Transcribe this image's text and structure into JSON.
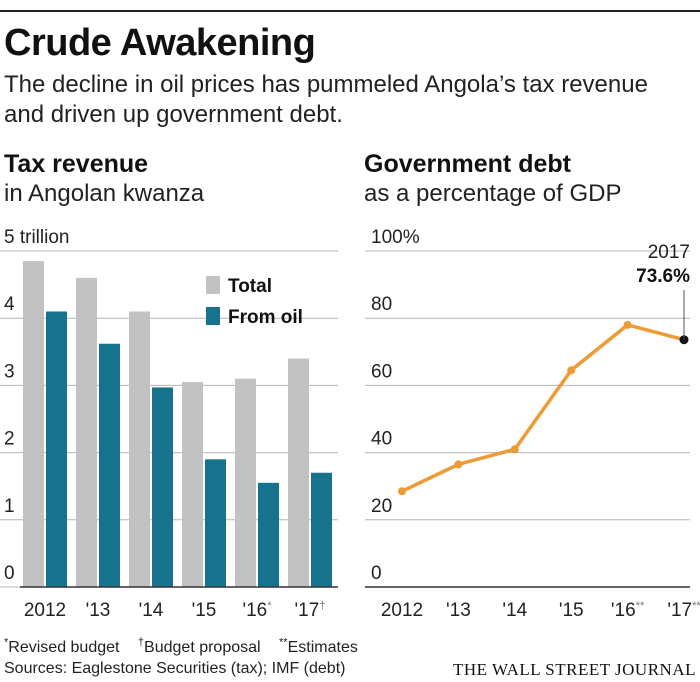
{
  "title": "Crude Awakening",
  "subtitle": "The decline in oil prices has pummeled Angola’s tax revenue and driven up government debt.",
  "colors": {
    "total": "#c2c2c2",
    "oil": "#17728d",
    "line": "#ee9a35",
    "grid": "#b5b5b5",
    "text": "#222222"
  },
  "left_panel": {
    "title": "Tax revenue",
    "subtitle": "in Angolan kwanza"
  },
  "right_panel": {
    "title": "Government debt",
    "subtitle": "as a percentage of GDP"
  },
  "footnotes": {
    "revised_mark": "*",
    "revised": "Revised budget",
    "proposal_mark": "†",
    "proposal": "Budget proposal",
    "estimates_mark": "**",
    "estimates": "Estimates"
  },
  "sources": "Sources: Eaglestone Securities (tax); IMF (debt)",
  "publisher": "THE WALL STREET JOURNAL",
  "chart_data": [
    {
      "type": "bar",
      "title": "Tax revenue",
      "subtitle": "in Angolan kwanza",
      "categories": [
        "2012",
        "'13",
        "'14",
        "'15",
        "'16",
        "'17"
      ],
      "category_marks": [
        "",
        "",
        "",
        "",
        "*",
        "†"
      ],
      "series": [
        {
          "name": "Total",
          "values": [
            4.85,
            4.6,
            4.1,
            3.05,
            3.1,
            3.4
          ]
        },
        {
          "name": "From oil",
          "values": [
            4.1,
            3.62,
            2.97,
            1.9,
            1.55,
            1.7
          ]
        }
      ],
      "ylim": [
        0,
        5
      ],
      "yticks": [
        0,
        1,
        2,
        3,
        4,
        5
      ],
      "ytick_labels": [
        "0",
        "1",
        "2",
        "3",
        "4",
        "5 trillion"
      ],
      "grid": true,
      "legend": "top-right"
    },
    {
      "type": "line",
      "title": "Government debt",
      "subtitle": "as a percentage of GDP",
      "categories": [
        "2012",
        "'13",
        "'14",
        "'15",
        "'16",
        "'17"
      ],
      "category_marks": [
        "",
        "",
        "",
        "",
        "**",
        "**"
      ],
      "series": [
        {
          "name": "Government debt",
          "values": [
            28.5,
            36.5,
            41,
            64.5,
            78,
            73.6
          ]
        }
      ],
      "ylim": [
        0,
        100
      ],
      "yticks": [
        0,
        20,
        40,
        60,
        80,
        100
      ],
      "ytick_labels": [
        "0",
        "20",
        "40",
        "60",
        "80",
        "100%"
      ],
      "grid": true,
      "annotation": {
        "label": "2017",
        "value_label": "73.6%"
      }
    }
  ]
}
